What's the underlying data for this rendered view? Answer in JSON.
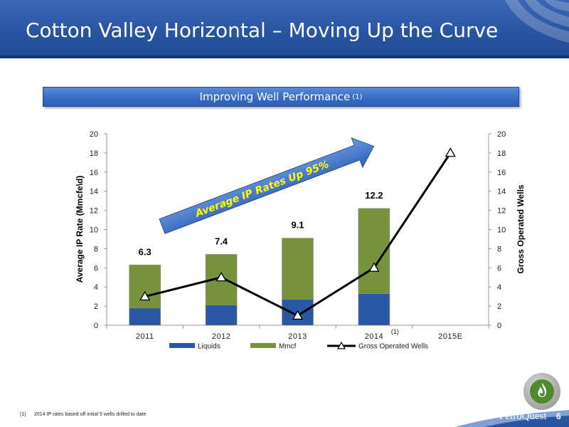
{
  "header": {
    "title": "Cotton Valley Horizontal – Moving Up the Curve"
  },
  "banner": {
    "title": "Improving Well Performance",
    "note": "(1)"
  },
  "callout": {
    "text": "Average IP Rates Up 95%"
  },
  "chart_data": {
    "type": "bar",
    "categories": [
      "2011",
      "2012",
      "2013",
      "2014",
      "2015E"
    ],
    "category_note": {
      "category": "2014",
      "text": "(1)"
    },
    "series": [
      {
        "name": "Liquids",
        "type": "bar",
        "stack": "ip",
        "axis": "left",
        "color": "#2b58a5",
        "values": [
          1.8,
          2.1,
          2.7,
          3.3,
          null
        ]
      },
      {
        "name": "Mmcf",
        "type": "bar",
        "stack": "ip",
        "axis": "left",
        "color": "#77923c",
        "values": [
          4.5,
          5.3,
          6.4,
          8.9,
          null
        ]
      },
      {
        "name": "Gross Operated Wells",
        "type": "line",
        "axis": "right",
        "marker": "triangle",
        "color": "#000000",
        "values": [
          3,
          5,
          1,
          6,
          18
        ]
      }
    ],
    "totals": [
      6.3,
      7.4,
      9.1,
      12.2,
      null
    ],
    "total_labels": [
      "6.3",
      "7.4",
      "9.1",
      "12.2",
      ""
    ],
    "ylabel": "Average IP Rate (Mmcfe\\d)",
    "y2label": "Gross Operated Wells",
    "ylim": [
      0,
      20
    ],
    "y2lim": [
      0,
      20
    ],
    "yticks": [
      "0",
      "2",
      "4",
      "6",
      "8",
      "10",
      "12",
      "14",
      "16",
      "18",
      "20"
    ],
    "y2ticks": [
      "0",
      "2",
      "4",
      "6",
      "8",
      "10",
      "12",
      "14",
      "16",
      "18",
      "20"
    ],
    "legend_position": "bottom",
    "grid": false
  },
  "footnote": {
    "mark": "(1)",
    "text": "2014 IP rates based off initial 5 wells drilled to date"
  },
  "footer": {
    "brand": "PetroQuest",
    "page": "6"
  },
  "colors": {
    "header": "#2a55a3",
    "liquids": "#2b58a5",
    "mmcf": "#77923c",
    "line": "#000000"
  }
}
